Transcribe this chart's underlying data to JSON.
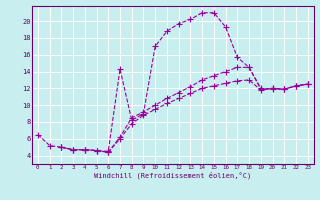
{
  "xlabel": "Windchill (Refroidissement éolien,°C)",
  "bg_color": "#c8eef0",
  "grid_color": "#ffffff",
  "line_color": "#990099",
  "xlim": [
    -0.5,
    23.5
  ],
  "ylim": [
    3.0,
    21.8
  ],
  "yticks": [
    4,
    6,
    8,
    10,
    12,
    14,
    16,
    18,
    20
  ],
  "xticks": [
    0,
    1,
    2,
    3,
    4,
    5,
    6,
    7,
    8,
    9,
    10,
    11,
    12,
    13,
    14,
    15,
    16,
    17,
    18,
    19,
    20,
    21,
    22,
    23
  ],
  "series1": {
    "x": [
      0,
      1,
      2,
      3,
      4,
      5,
      6,
      7,
      8,
      9,
      10,
      11,
      12,
      13,
      14,
      15,
      16,
      17,
      18,
      19,
      20,
      21,
      22,
      23
    ],
    "y": [
      6.5,
      5.2,
      5.0,
      4.7,
      4.7,
      4.6,
      4.5,
      14.3,
      8.2,
      9.0,
      17.0,
      18.8,
      19.7,
      20.2,
      21.0,
      21.0,
      19.3,
      15.7,
      14.5,
      12.0,
      11.9,
      11.9,
      12.3,
      12.5
    ]
  },
  "series2": {
    "x": [
      2,
      3,
      4,
      5,
      6,
      7,
      8,
      9,
      10,
      11,
      12,
      13,
      14,
      15,
      16,
      17,
      18,
      19,
      20,
      21,
      22,
      23
    ],
    "y": [
      5.0,
      4.7,
      4.7,
      4.6,
      4.4,
      6.2,
      8.5,
      9.2,
      10.0,
      10.8,
      11.5,
      12.2,
      13.0,
      13.5,
      14.0,
      14.5,
      14.5,
      11.9,
      12.0,
      11.9,
      12.3,
      12.5
    ]
  },
  "series3": {
    "x": [
      2,
      3,
      4,
      5,
      6,
      7,
      8,
      9,
      10,
      11,
      12,
      13,
      14,
      15,
      16,
      17,
      18,
      19,
      20,
      21,
      22,
      23
    ],
    "y": [
      5.0,
      4.7,
      4.7,
      4.6,
      4.4,
      6.0,
      7.8,
      8.8,
      9.5,
      10.2,
      10.8,
      11.4,
      12.0,
      12.3,
      12.6,
      12.9,
      13.0,
      11.8,
      12.0,
      11.9,
      12.3,
      12.5
    ]
  }
}
